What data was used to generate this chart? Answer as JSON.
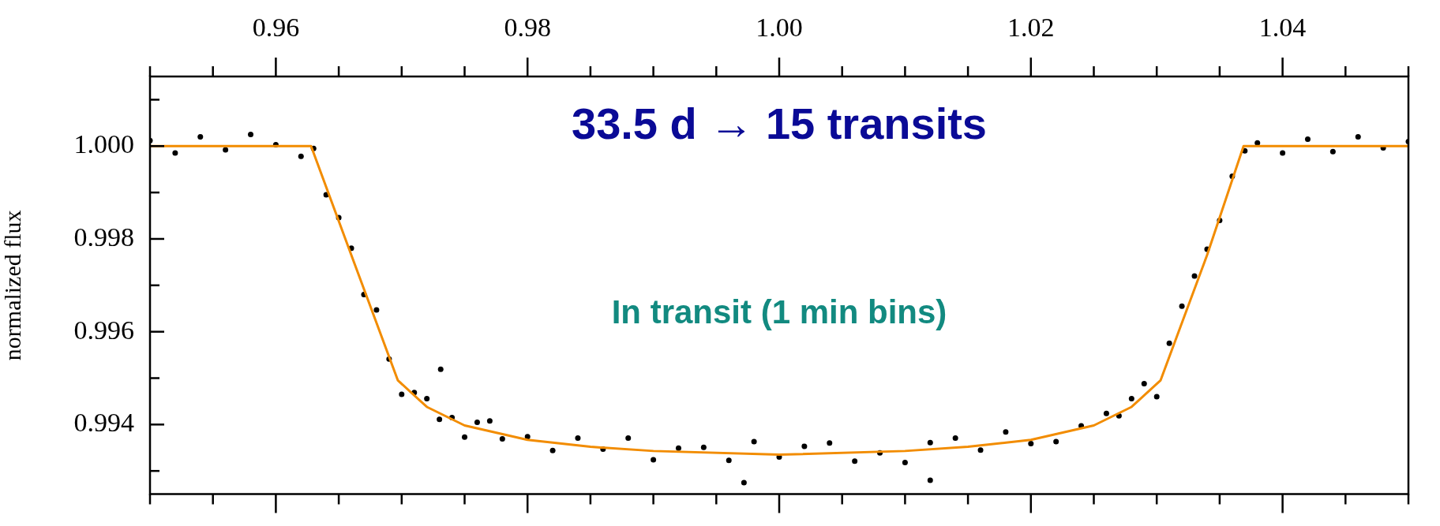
{
  "chart_data": {
    "type": "scatter",
    "ylabel": "normalized flux",
    "annotations": [
      "33.5 d → 15 transits",
      "In transit (1 min bins)"
    ],
    "xlim": [
      0.95,
      1.05
    ],
    "xticks": [
      {
        "value": 0.95,
        "label": null
      },
      {
        "value": 0.955,
        "label": null
      },
      0.96,
      {
        "value": 0.965,
        "label": null
      },
      {
        "value": 0.97,
        "label": null
      },
      {
        "value": 0.975,
        "label": null
      },
      0.98,
      {
        "value": 0.985,
        "label": null
      },
      {
        "value": 0.99,
        "label": null
      },
      {
        "value": 0.995,
        "label": null
      },
      {
        "value": 1.0,
        "label": "1.00"
      },
      {
        "value": 1.005,
        "label": null
      },
      {
        "value": 1.01,
        "label": null
      },
      {
        "value": 1.015,
        "label": null
      },
      1.02,
      {
        "value": 1.025,
        "label": null
      },
      {
        "value": 1.03,
        "label": null
      },
      {
        "value": 1.035,
        "label": null
      },
      1.04,
      {
        "value": 1.045,
        "label": null
      },
      {
        "value": 1.05,
        "label": null
      }
    ],
    "ylim": [
      0.9925,
      1.0015
    ],
    "yticks": [
      {
        "value": 0.993,
        "label": null
      },
      {
        "value": 0.994,
        "label": "0.994"
      },
      {
        "value": 0.995,
        "label": null
      },
      {
        "value": 0.996,
        "label": "0.996"
      },
      {
        "value": 0.997,
        "label": null
      },
      {
        "value": 0.998,
        "label": "0.998"
      },
      {
        "value": 0.999,
        "label": null
      },
      {
        "value": 1.0,
        "label": "1.000"
      },
      {
        "value": 1.001,
        "label": null
      }
    ],
    "marker": "circle",
    "series": [
      {
        "type": "scatter",
        "color": "#000000",
        "x": [
          0.95,
          0.952,
          0.954,
          0.956,
          0.958,
          0.96,
          0.962,
          0.963,
          0.964,
          0.965,
          0.966,
          0.967,
          0.968,
          0.969,
          0.97,
          0.971,
          0.972,
          0.973,
          0.974,
          0.975,
          0.976,
          0.977,
          0.978,
          0.98,
          0.982,
          0.984,
          0.986,
          0.988,
          0.99,
          0.992,
          0.994,
          0.996,
          0.998,
          1.0,
          1.002,
          1.004,
          1.006,
          1.008,
          1.01,
          1.012,
          1.014,
          1.016,
          1.018,
          1.02,
          1.022,
          1.024,
          1.026,
          1.027,
          1.028,
          1.029,
          1.03,
          1.031,
          1.032,
          1.033,
          1.034,
          1.035,
          1.036,
          1.037,
          1.038,
          1.04,
          1.042,
          1.044,
          1.046,
          1.048,
          1.05,
          0.9731,
          0.9972,
          1.012
        ],
        "values": [
          1.00012,
          0.99985,
          1.0002,
          0.99992,
          1.00025,
          1.00003,
          0.99978,
          0.99995,
          0.99895,
          0.99846,
          0.9978,
          0.9968,
          0.99647,
          0.99541,
          0.99465,
          0.99469,
          0.99456,
          0.99411,
          0.99415,
          0.99373,
          0.99405,
          0.99408,
          0.99369,
          0.99374,
          0.99344,
          0.99371,
          0.99347,
          0.99371,
          0.99324,
          0.99349,
          0.99351,
          0.99323,
          0.99363,
          0.9933,
          0.99353,
          0.9936,
          0.99321,
          0.99339,
          0.99318,
          0.99361,
          0.99371,
          0.99345,
          0.99384,
          0.99359,
          0.99363,
          0.99397,
          0.99424,
          0.99419,
          0.99456,
          0.99488,
          0.9946,
          0.99575,
          0.99655,
          0.9972,
          0.99778,
          0.9984,
          0.99935,
          0.9999,
          1.00007,
          0.99985,
          1.00015,
          0.99988,
          1.0002,
          0.99996,
          1.0001,
          0.99519,
          0.99275,
          0.9928
        ]
      },
      {
        "type": "line",
        "color": "#f28c00",
        "marker": "none",
        "x": [
          0.95,
          0.9628,
          0.966,
          0.9697,
          0.972,
          0.975,
          0.98,
          0.985,
          0.99,
          1.0,
          1.01,
          1.015,
          1.02,
          1.025,
          1.028,
          1.0303,
          1.034,
          1.0369,
          1.05
        ],
        "values": [
          1.0,
          1.0,
          0.99765,
          0.99495,
          0.99438,
          0.99398,
          0.99367,
          0.99352,
          0.99343,
          0.99335,
          0.99343,
          0.99352,
          0.99367,
          0.99398,
          0.99438,
          0.99495,
          0.99765,
          1.0,
          1.0
        ]
      }
    ]
  }
}
